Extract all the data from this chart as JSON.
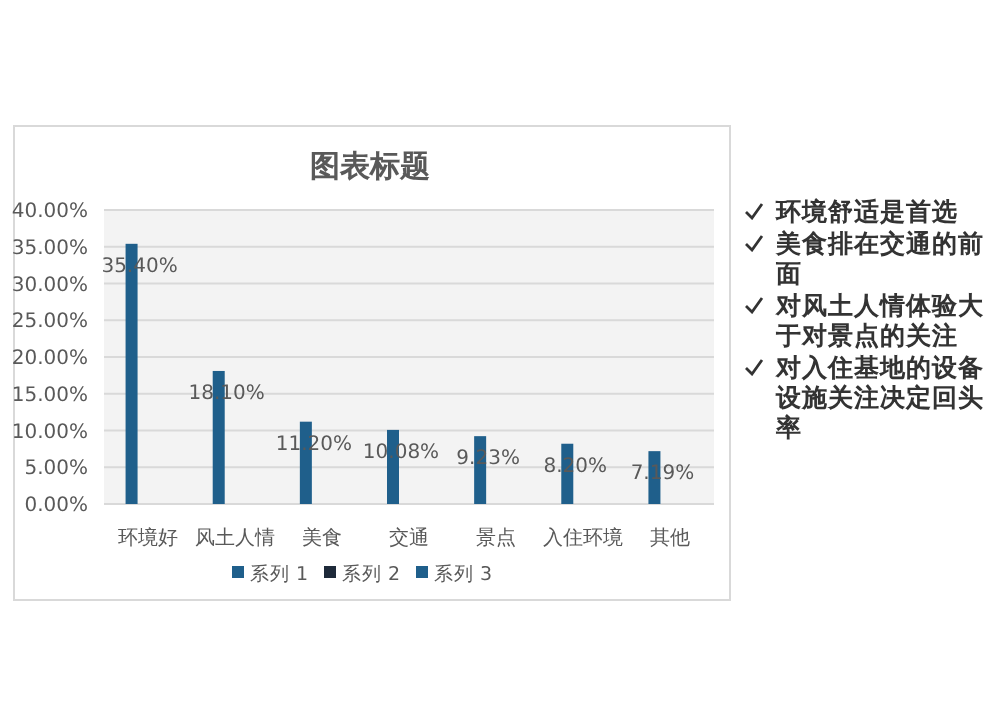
{
  "chart_data": {
    "type": "bar",
    "title": "图表标题",
    "categories": [
      "环境好",
      "风土人情",
      "美食",
      "交通",
      "景点",
      "入住环境",
      "其他"
    ],
    "series": [
      {
        "name": "系列 1",
        "color": "#1f5f8b",
        "values": [
          35.4,
          18.1,
          11.2,
          10.08,
          9.23,
          8.2,
          7.19
        ],
        "value_labels": [
          "35.40%",
          "18.10%",
          "11.20%",
          "10.08%",
          "9.23%",
          "8.20%",
          "7.19%"
        ]
      },
      {
        "name": "系列 2",
        "color": "#1e2a3a",
        "values": [
          null,
          null,
          null,
          null,
          null,
          null,
          null
        ]
      },
      {
        "name": "系列 3",
        "color": "#1f5f8b",
        "values": [
          null,
          null,
          null,
          null,
          null,
          null,
          null
        ]
      }
    ],
    "ylim": [
      0,
      40
    ],
    "yticks": [
      {
        "value": 0,
        "label": "0.00%"
      },
      {
        "value": 5,
        "label": "5.00%"
      },
      {
        "value": 10,
        "label": "10.00%"
      },
      {
        "value": 15,
        "label": "15.00%"
      },
      {
        "value": 20,
        "label": "20.00%"
      },
      {
        "value": 25,
        "label": "25.00%"
      },
      {
        "value": 30,
        "label": "30.00%"
      },
      {
        "value": 35,
        "label": "35.00%"
      },
      {
        "value": 40,
        "label": "40.00%"
      }
    ],
    "grid": "y",
    "legend": "bottom",
    "annotations": [
      "环境舒适是首选",
      "美食排在交通的前面",
      "对风土人情体验大于对景点的关注",
      "对入住基地的设备设施关注决定回头率"
    ]
  }
}
